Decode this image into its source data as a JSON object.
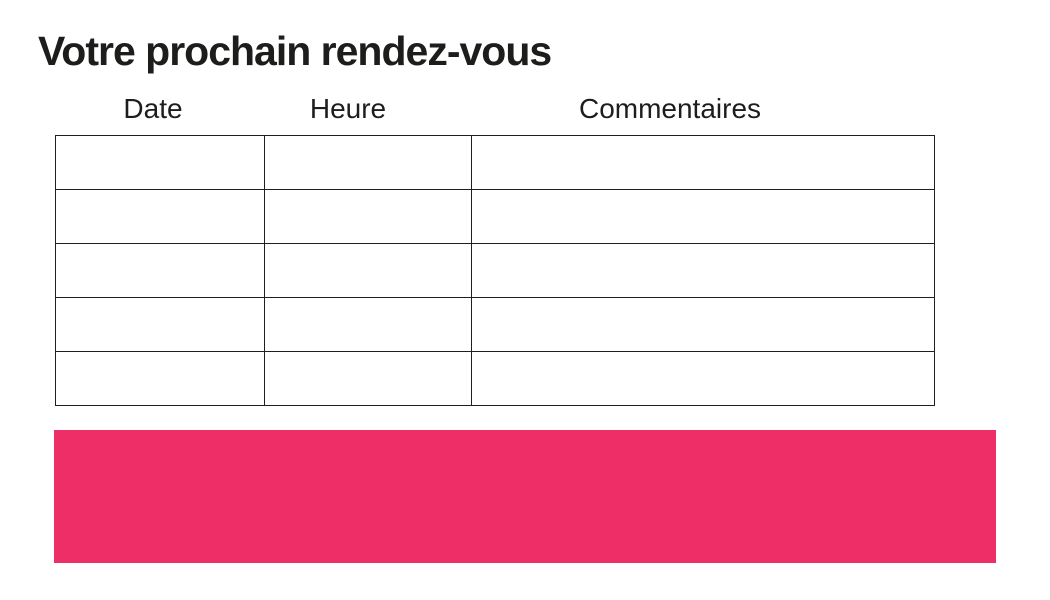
{
  "page": {
    "title": "Votre prochain rendez-vous"
  },
  "table": {
    "columns": [
      {
        "label": "Date"
      },
      {
        "label": "Heure"
      },
      {
        "label": "Commentaires"
      }
    ],
    "rows": [
      [
        "",
        "",
        ""
      ],
      [
        "",
        "",
        ""
      ],
      [
        "",
        "",
        ""
      ],
      [
        "",
        "",
        ""
      ],
      [
        "",
        "",
        ""
      ]
    ]
  },
  "colors": {
    "accent_pink": "#ED2E67",
    "text": "#1D1D1B",
    "table_border": "#1F1F1F",
    "background": "#FFFFFF"
  }
}
